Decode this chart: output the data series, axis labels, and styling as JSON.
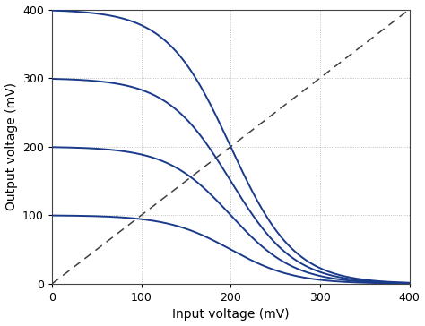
{
  "title": "",
  "xlabel": "Input voltage (mV)",
  "ylabel": "Output voltage (mV)",
  "xlim": [
    0,
    400
  ],
  "ylim": [
    0,
    400
  ],
  "xticks": [
    0,
    100,
    200,
    300,
    400
  ],
  "yticks": [
    0,
    100,
    200,
    300,
    400
  ],
  "grid_color": "#b0b0b0",
  "curve_color": "#1a3a8a",
  "dashed_color": "#404040",
  "vdd_values": [
    100,
    200,
    300,
    400
  ],
  "midpoint": 200,
  "steepness": 0.028,
  "background_color": "#ffffff",
  "figsize": [
    4.74,
    3.64
  ],
  "dpi": 100
}
